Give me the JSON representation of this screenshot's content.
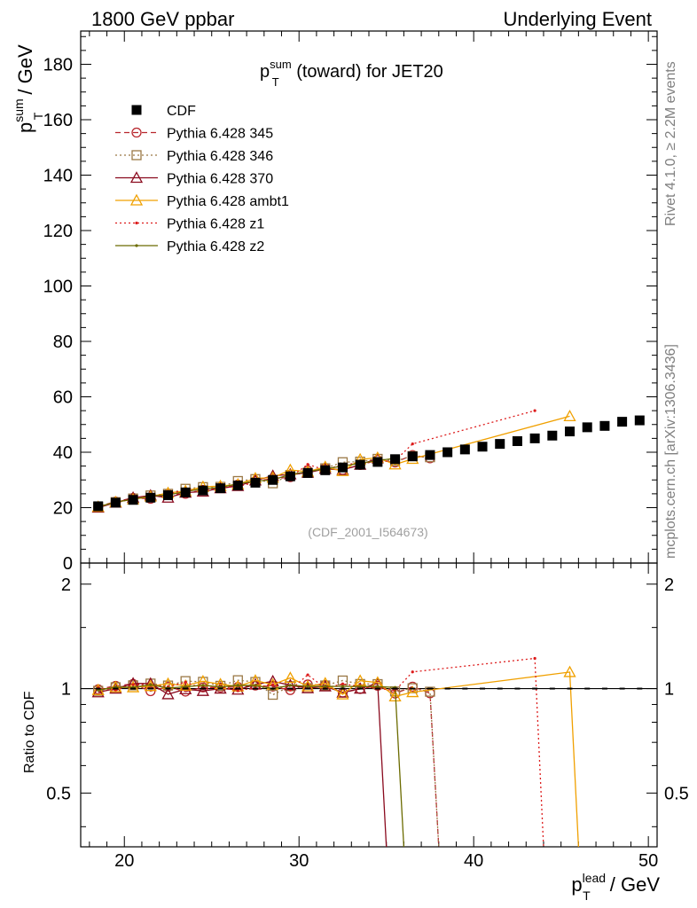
{
  "header": {
    "left": "1800 GeV ppbar",
    "right": "Underlying Event"
  },
  "side_labels": {
    "rivet": "Rivet 4.1.0, ≥ 2.2M events",
    "mcplots": "mcplots.cern.ch [arXiv:1306.3436]"
  },
  "analysis_id": "(CDF_2001_I564673)",
  "chart_data": {
    "type": "line",
    "title": "p_T^sum (toward) for JET20",
    "title_parts": {
      "p": "p",
      "sup": "sum",
      "sub": "T",
      "rest": " (toward) for JET20"
    },
    "xlabel": "p_T^lead / GeV",
    "xlabel_parts": {
      "p": "p",
      "sup": "lead",
      "sub": "T",
      "rest": " / GeV"
    },
    "ylabel": "p_T^sum / GeV",
    "ylabel_parts": {
      "p": "p",
      "sup": "sum",
      "sub": "T",
      "rest": " / GeV"
    },
    "ratio_ylabel": "Ratio to CDF",
    "xlim": [
      17.5,
      50.5
    ],
    "ylim": [
      0,
      192
    ],
    "ratio_ylim": [
      0.35,
      2.3
    ],
    "x_ticks": [
      20,
      30,
      40,
      50
    ],
    "x_tick_labels": [
      "20",
      "30",
      "40",
      "50"
    ],
    "y_ticks": [
      0,
      20,
      40,
      60,
      80,
      100,
      120,
      140,
      160,
      180
    ],
    "y_tick_labels": [
      "0",
      "20",
      "40",
      "60",
      "80",
      "100",
      "120",
      "140",
      "160",
      "180"
    ],
    "ratio_ticks": [
      0.5,
      1,
      2
    ],
    "ratio_tick_labels": [
      "0.5",
      "1",
      "2"
    ],
    "series": [
      {
        "name": "CDF",
        "label": "CDF",
        "color": "#000000",
        "style": "points",
        "marker": "square",
        "x": [
          18.5,
          19.5,
          20.5,
          21.5,
          22.5,
          23.5,
          24.5,
          25.5,
          26.5,
          27.5,
          28.5,
          29.5,
          30.5,
          31.5,
          32.5,
          33.5,
          34.5,
          35.5,
          36.5,
          37.5,
          38.5,
          39.5,
          40.5,
          41.5,
          42.5,
          43.5,
          44.5,
          45.5,
          46.5,
          47.5,
          48.5,
          49.5
        ],
        "y": [
          20.5,
          21.8,
          22.8,
          23.6,
          24.5,
          25.5,
          26.2,
          27.0,
          28.0,
          29.0,
          30.0,
          31.3,
          32.5,
          33.5,
          34.5,
          35.5,
          36.5,
          37.5,
          38.5,
          39.0,
          40.0,
          41.0,
          42.0,
          43.0,
          44.0,
          45.0,
          46.0,
          47.5,
          49.0,
          49.5,
          51.0,
          51.5
        ]
      },
      {
        "name": "Pythia 6.428 345",
        "label": "Pythia 6.428 345",
        "color": "#b8262d",
        "style": "dashed",
        "marker": "circle",
        "x": [
          18.5,
          19.5,
          20.5,
          21.5,
          22.5,
          23.5,
          24.5,
          25.5,
          26.5,
          27.5,
          28.5,
          29.5,
          30.5,
          31.5,
          32.5,
          33.5,
          34.5,
          35.5,
          36.5,
          37.5
        ],
        "y": [
          20.4,
          22.2,
          23.5,
          23.2,
          24.8,
          25.0,
          26.4,
          27.2,
          28.3,
          29.6,
          30.4,
          31.0,
          33.4,
          34.3,
          33.6,
          35.4,
          37.2,
          36.3,
          39.0,
          37.8
        ]
      },
      {
        "name": "Pythia 6.428 346",
        "label": "Pythia 6.428 346",
        "color": "#9a7845",
        "style": "dotted",
        "marker": "square-open",
        "x": [
          18.5,
          19.5,
          20.5,
          21.5,
          22.5,
          23.5,
          24.5,
          25.5,
          26.5,
          27.5,
          28.5,
          29.5,
          30.5,
          31.5,
          32.5,
          33.5,
          34.5,
          35.5,
          36.5,
          37.5
        ],
        "y": [
          20.2,
          22.0,
          23.3,
          24.4,
          25.0,
          26.8,
          27.4,
          27.5,
          29.6,
          30.3,
          28.8,
          31.8,
          32.6,
          34.2,
          36.4,
          36.6,
          37.6,
          36.8,
          38.6,
          38.2
        ]
      },
      {
        "name": "Pythia 6.428 370",
        "label": "Pythia 6.428 370",
        "color": "#8a0a1e",
        "style": "solid",
        "marker": "triangle-open",
        "x": [
          18.5,
          19.5,
          20.5,
          21.5,
          22.5,
          23.5,
          24.5,
          25.5,
          26.5,
          27.5,
          28.5,
          29.5,
          30.5,
          31.5,
          32.5,
          33.5,
          34.5
        ],
        "y": [
          20.0,
          21.8,
          23.6,
          24.4,
          23.6,
          25.4,
          25.8,
          27.0,
          27.8,
          29.8,
          31.5,
          32.0,
          32.6,
          34.0,
          33.6,
          35.5,
          37.8
        ]
      },
      {
        "name": "Pythia 6.428 ambt1",
        "label": "Pythia 6.428 ambt1",
        "color": "#f0a000",
        "style": "solid",
        "marker": "triangle-open",
        "x": [
          18.5,
          19.5,
          20.5,
          21.5,
          22.5,
          23.5,
          24.5,
          25.5,
          26.5,
          27.5,
          28.5,
          29.5,
          30.5,
          31.5,
          32.5,
          33.5,
          34.5,
          35.5,
          36.5,
          45.5
        ],
        "y": [
          20.3,
          22.0,
          23.0,
          24.0,
          25.3,
          26.0,
          27.5,
          27.8,
          28.4,
          30.6,
          30.8,
          33.6,
          33.0,
          34.7,
          33.2,
          37.4,
          38.0,
          35.6,
          37.6,
          53.0
        ]
      },
      {
        "name": "Pythia 6.428 z1",
        "label": "Pythia 6.428 z1",
        "color": "#dd1c1c",
        "style": "dotted",
        "marker": "dot",
        "x": [
          18.5,
          19.5,
          20.5,
          21.5,
          22.5,
          23.5,
          24.5,
          25.5,
          26.5,
          27.5,
          28.5,
          29.5,
          30.5,
          31.5,
          32.5,
          33.5,
          34.5,
          35.5,
          36.5,
          43.5
        ],
        "y": [
          20.6,
          21.6,
          23.4,
          24.2,
          24.8,
          26.6,
          26.2,
          27.4,
          27.6,
          29.2,
          30.8,
          31.0,
          35.6,
          33.6,
          35.6,
          36.0,
          36.6,
          37.0,
          43.0,
          55.0
        ]
      },
      {
        "name": "Pythia 6.428 z2",
        "label": "Pythia 6.428 z2",
        "color": "#6b6b00",
        "style": "solid",
        "marker": "dot",
        "x": [
          18.5,
          19.5,
          20.5,
          21.5,
          22.5,
          23.5,
          24.5,
          25.5,
          26.5,
          27.5,
          28.5,
          29.5,
          30.5,
          31.5,
          32.5,
          33.5,
          34.5,
          35.5
        ],
        "y": [
          20.3,
          22.0,
          23.0,
          24.2,
          24.6,
          25.8,
          26.8,
          27.3,
          28.6,
          29.6,
          30.0,
          32.0,
          33.0,
          34.0,
          35.0,
          36.0,
          37.0,
          37.8
        ]
      }
    ],
    "ratio_notes": "MC series drop to zero beyond their last filled bin; ratio lines fall below the lower axis edge"
  }
}
